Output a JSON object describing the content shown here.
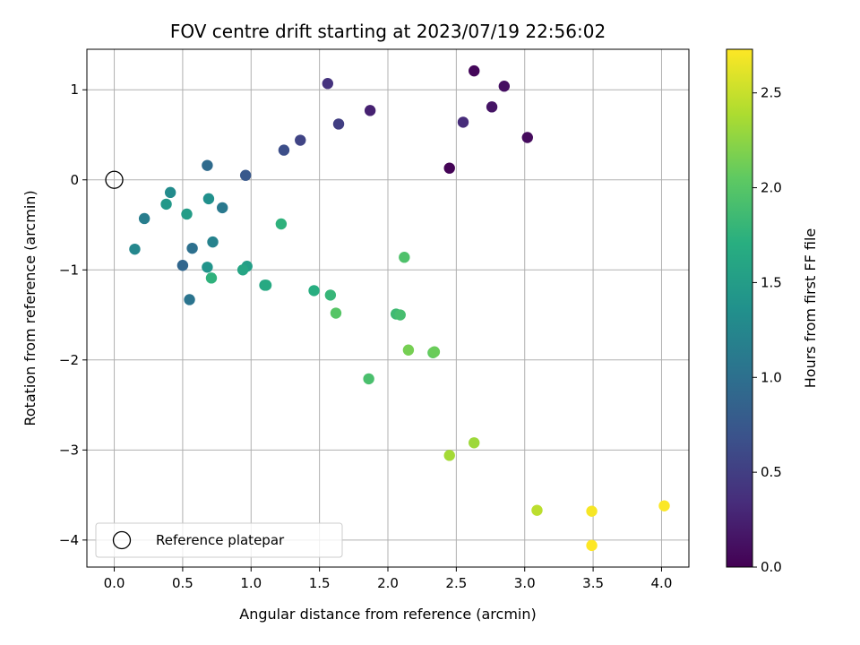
{
  "chart_data": {
    "type": "scatter",
    "title": "FOV centre drift starting at 2023/07/19 22:56:02",
    "xlabel": "Angular distance from reference (arcmin)",
    "ylabel": "Rotation from reference (arcmin)",
    "xlim": [
      -0.2,
      4.2
    ],
    "ylim": [
      -4.3,
      1.45
    ],
    "xticks": [
      "0.0",
      "0.5",
      "1.0",
      "1.5",
      "2.0",
      "2.5",
      "3.0",
      "3.5",
      "4.0"
    ],
    "yticks": [
      "1",
      "0",
      "−1",
      "−2",
      "−3",
      "−4"
    ],
    "grid": true,
    "colormap": "viridis",
    "colorbar": {
      "label": "Hours from first FF file",
      "range": [
        0.0,
        2.73
      ],
      "ticks": [
        "0.0",
        "0.5",
        "1.0",
        "1.5",
        "2.0",
        "2.5"
      ]
    },
    "legend": {
      "placement": "lower-left",
      "label": "Reference platepar"
    },
    "reference": {
      "x": 0.0,
      "y": 0.0
    },
    "points": [
      {
        "x": 2.45,
        "y": 0.13,
        "c": 0.02
      },
      {
        "x": 2.63,
        "y": 1.21,
        "c": 0.05
      },
      {
        "x": 3.02,
        "y": 0.47,
        "c": 0.08
      },
      {
        "x": 2.85,
        "y": 1.04,
        "c": 0.11
      },
      {
        "x": 2.76,
        "y": 0.81,
        "c": 0.15
      },
      {
        "x": 1.87,
        "y": 0.77,
        "c": 0.25
      },
      {
        "x": 2.55,
        "y": 0.64,
        "c": 0.33
      },
      {
        "x": 1.56,
        "y": 1.07,
        "c": 0.4
      },
      {
        "x": 1.64,
        "y": 0.62,
        "c": 0.5
      },
      {
        "x": 1.36,
        "y": 0.44,
        "c": 0.55
      },
      {
        "x": 1.24,
        "y": 0.33,
        "c": 0.65
      },
      {
        "x": 0.96,
        "y": 0.05,
        "c": 0.75
      },
      {
        "x": 0.68,
        "y": 0.16,
        "c": 0.95
      },
      {
        "x": 0.5,
        "y": -0.95,
        "c": 0.9
      },
      {
        "x": 0.57,
        "y": -0.76,
        "c": 1.0
      },
      {
        "x": 0.55,
        "y": -1.33,
        "c": 1.05
      },
      {
        "x": 0.79,
        "y": -0.31,
        "c": 1.1
      },
      {
        "x": 0.22,
        "y": -0.43,
        "c": 1.15
      },
      {
        "x": 0.72,
        "y": -0.69,
        "c": 1.2
      },
      {
        "x": 0.15,
        "y": -0.77,
        "c": 1.25
      },
      {
        "x": 0.41,
        "y": -0.14,
        "c": 1.3
      },
      {
        "x": 0.69,
        "y": -0.21,
        "c": 1.35
      },
      {
        "x": 0.38,
        "y": -0.27,
        "c": 1.45
      },
      {
        "x": 0.68,
        "y": -0.97,
        "c": 1.4
      },
      {
        "x": 0.53,
        "y": -0.38,
        "c": 1.5
      },
      {
        "x": 0.97,
        "y": -0.96,
        "c": 1.52
      },
      {
        "x": 0.94,
        "y": -1.0,
        "c": 1.6
      },
      {
        "x": 1.1,
        "y": -1.17,
        "c": 1.6
      },
      {
        "x": 1.11,
        "y": -1.17,
        "c": 1.65
      },
      {
        "x": 0.71,
        "y": -1.09,
        "c": 1.75
      },
      {
        "x": 1.46,
        "y": -1.23,
        "c": 1.7
      },
      {
        "x": 1.22,
        "y": -0.49,
        "c": 1.75
      },
      {
        "x": 1.58,
        "y": -1.28,
        "c": 1.8
      },
      {
        "x": 2.06,
        "y": -1.49,
        "c": 1.85
      },
      {
        "x": 2.09,
        "y": -1.5,
        "c": 1.9
      },
      {
        "x": 1.86,
        "y": -2.21,
        "c": 1.92
      },
      {
        "x": 2.12,
        "y": -0.86,
        "c": 1.95
      },
      {
        "x": 1.62,
        "y": -1.48,
        "c": 2.0
      },
      {
        "x": 2.33,
        "y": -1.92,
        "c": 2.05
      },
      {
        "x": 2.34,
        "y": -1.91,
        "c": 2.1
      },
      {
        "x": 2.15,
        "y": -1.89,
        "c": 2.15
      },
      {
        "x": 2.63,
        "y": -2.92,
        "c": 2.32
      },
      {
        "x": 2.45,
        "y": -3.06,
        "c": 2.35
      },
      {
        "x": 3.09,
        "y": -3.67,
        "c": 2.45
      },
      {
        "x": 3.49,
        "y": -3.68,
        "c": 2.7
      },
      {
        "x": 4.02,
        "y": -3.62,
        "c": 2.72
      },
      {
        "x": 3.49,
        "y": -4.06,
        "c": 2.73
      }
    ]
  }
}
